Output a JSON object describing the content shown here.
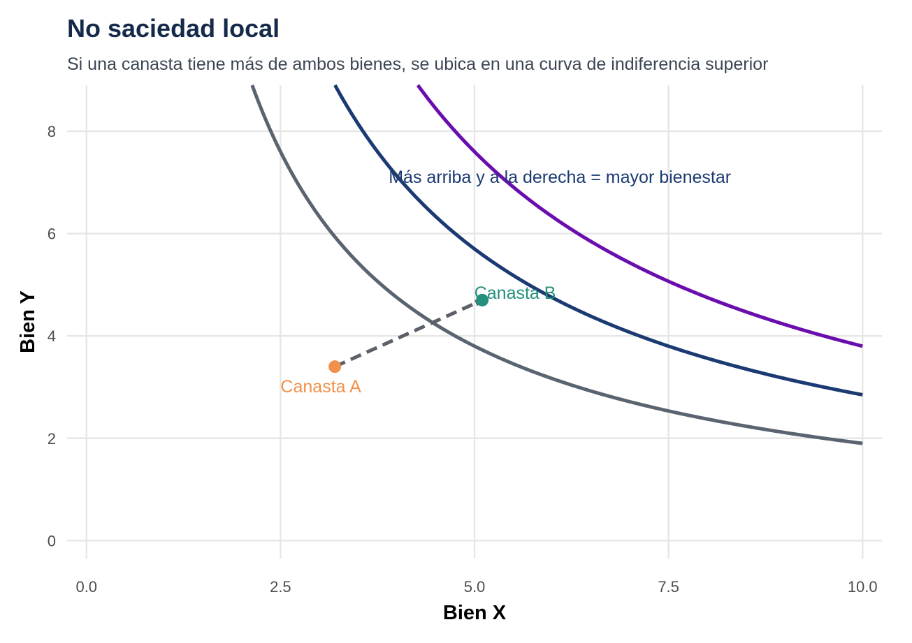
{
  "title": "No saciedad local",
  "subtitle": "Si una canasta tiene más de ambos bienes, se ubica en una curva de indiferencia superior",
  "chart_data": {
    "type": "line",
    "xlabel": "Bien X",
    "ylabel": "Bien Y",
    "xlim": [
      -0.25,
      10.25
    ],
    "ylim": [
      -0.35,
      8.9
    ],
    "x_ticks": [
      "0.0",
      "2.5",
      "5.0",
      "7.5",
      "10.0"
    ],
    "x_tick_values": [
      0,
      2.5,
      5,
      7.5,
      10
    ],
    "y_ticks": [
      "0",
      "2",
      "4",
      "6",
      "8"
    ],
    "y_tick_values": [
      0,
      2,
      4,
      6,
      8
    ],
    "grid": true,
    "series": [
      {
        "utility_k": 19.0,
        "x_start": 0.8,
        "x_end": 10,
        "color": "#5a6471"
      },
      {
        "utility_k": 28.5,
        "x_start": 1.0,
        "x_end": 10,
        "color": "#1b3a72"
      },
      {
        "utility_k": 38.0,
        "x_start": 1.8,
        "x_end": 10,
        "color": "#6a0dad"
      }
    ],
    "points": [
      {
        "label": "Canasta A",
        "x": 3.2,
        "y": 3.4,
        "color": "#f0904b"
      },
      {
        "label": "Canasta B",
        "x": 5.1,
        "y": 4.7,
        "color": "#23907b"
      }
    ],
    "arrow": {
      "from": [
        3.2,
        3.4
      ],
      "to": [
        5.1,
        4.7
      ],
      "color": "#5c6068",
      "style": "dashed"
    },
    "annotation": {
      "text": "Más arriba y a la derecha = mayor bienestar",
      "x": 6.1,
      "y": 7.1,
      "color": "#1b3a72"
    }
  }
}
